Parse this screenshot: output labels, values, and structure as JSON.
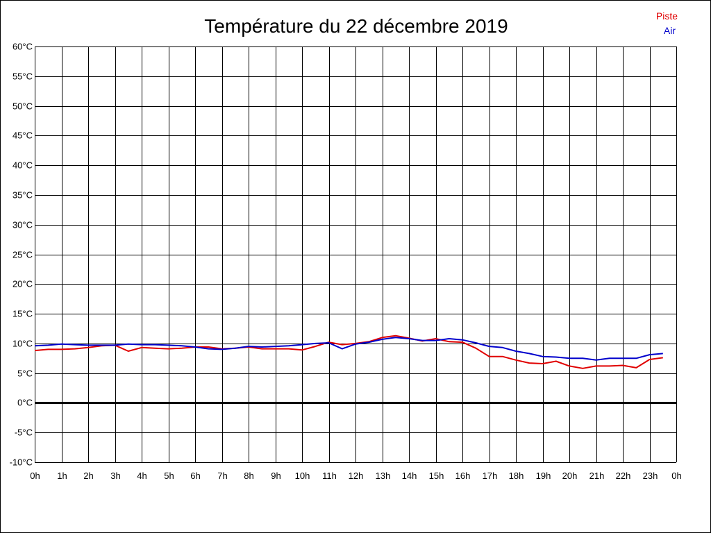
{
  "chart_data": {
    "type": "line",
    "title": "Température du 22 décembre 2019",
    "xlabel": "",
    "ylabel": "",
    "x_ticks": [
      "0h",
      "1h",
      "2h",
      "3h",
      "4h",
      "5h",
      "6h",
      "7h",
      "8h",
      "9h",
      "10h",
      "11h",
      "12h",
      "13h",
      "14h",
      "15h",
      "16h",
      "17h",
      "18h",
      "19h",
      "20h",
      "21h",
      "22h",
      "23h",
      "0h"
    ],
    "y_ticks": [
      "60°C",
      "55°C",
      "50°C",
      "45°C",
      "40°C",
      "35°C",
      "30°C",
      "25°C",
      "20°C",
      "15°C",
      "10°C",
      "5°C",
      "0°C",
      "-5°C",
      "-10°C"
    ],
    "xlim": [
      0,
      24
    ],
    "ylim": [
      -10,
      60
    ],
    "grid": true,
    "legend_position": "top-right",
    "colors": {
      "piste": "#e00000",
      "air": "#0000cc",
      "zero_line": "#000000",
      "grid": "#000000"
    },
    "series": [
      {
        "name": "Piste",
        "x": [
          0,
          0.5,
          1,
          1.5,
          2,
          2.5,
          3,
          3.5,
          4,
          4.5,
          5,
          5.5,
          6,
          6.5,
          7,
          7.5,
          8,
          8.5,
          9,
          9.5,
          10,
          10.5,
          11,
          11.5,
          12,
          12.5,
          13,
          13.5,
          14,
          14.5,
          15,
          15.5,
          16,
          16.5,
          17,
          17.5,
          18,
          18.5,
          19,
          19.5,
          20,
          20.5,
          21,
          21.5,
          22,
          22.5,
          23,
          23.5
        ],
        "values": [
          8.8,
          9.0,
          9.0,
          9.1,
          9.3,
          9.6,
          9.7,
          8.7,
          9.3,
          9.2,
          9.1,
          9.2,
          9.4,
          9.4,
          9.1,
          9.2,
          9.4,
          9.1,
          9.1,
          9.1,
          8.9,
          9.5,
          10.2,
          9.8,
          10.0,
          10.3,
          11.0,
          11.3,
          10.9,
          10.4,
          10.8,
          10.3,
          10.2,
          9.2,
          7.8,
          7.8,
          7.2,
          6.7,
          6.6,
          7.0,
          6.2,
          5.8,
          6.2,
          6.2,
          6.3,
          5.9,
          7.3,
          7.6
        ]
      },
      {
        "name": "Air",
        "x": [
          0,
          0.5,
          1,
          1.5,
          2,
          2.5,
          3,
          3.5,
          4,
          4.5,
          5,
          5.5,
          6,
          6.5,
          7,
          7.5,
          8,
          8.5,
          9,
          9.5,
          10,
          10.5,
          11,
          11.5,
          12,
          12.5,
          13,
          13.5,
          14,
          14.5,
          15,
          15.5,
          16,
          16.5,
          17,
          17.5,
          18,
          18.5,
          19,
          19.5,
          20,
          20.5,
          21,
          21.5,
          22,
          22.5,
          23,
          23.5
        ],
        "values": [
          9.6,
          9.7,
          9.9,
          9.8,
          9.7,
          9.7,
          9.7,
          9.9,
          9.8,
          9.8,
          9.7,
          9.6,
          9.4,
          9.1,
          9.0,
          9.2,
          9.5,
          9.4,
          9.5,
          9.6,
          9.8,
          10.0,
          10.1,
          9.1,
          9.9,
          10.2,
          10.7,
          11.0,
          10.8,
          10.5,
          10.5,
          10.8,
          10.6,
          10.1,
          9.5,
          9.3,
          8.7,
          8.3,
          7.8,
          7.7,
          7.5,
          7.5,
          7.2,
          7.5,
          7.5,
          7.5,
          8.1,
          8.3
        ]
      }
    ]
  }
}
